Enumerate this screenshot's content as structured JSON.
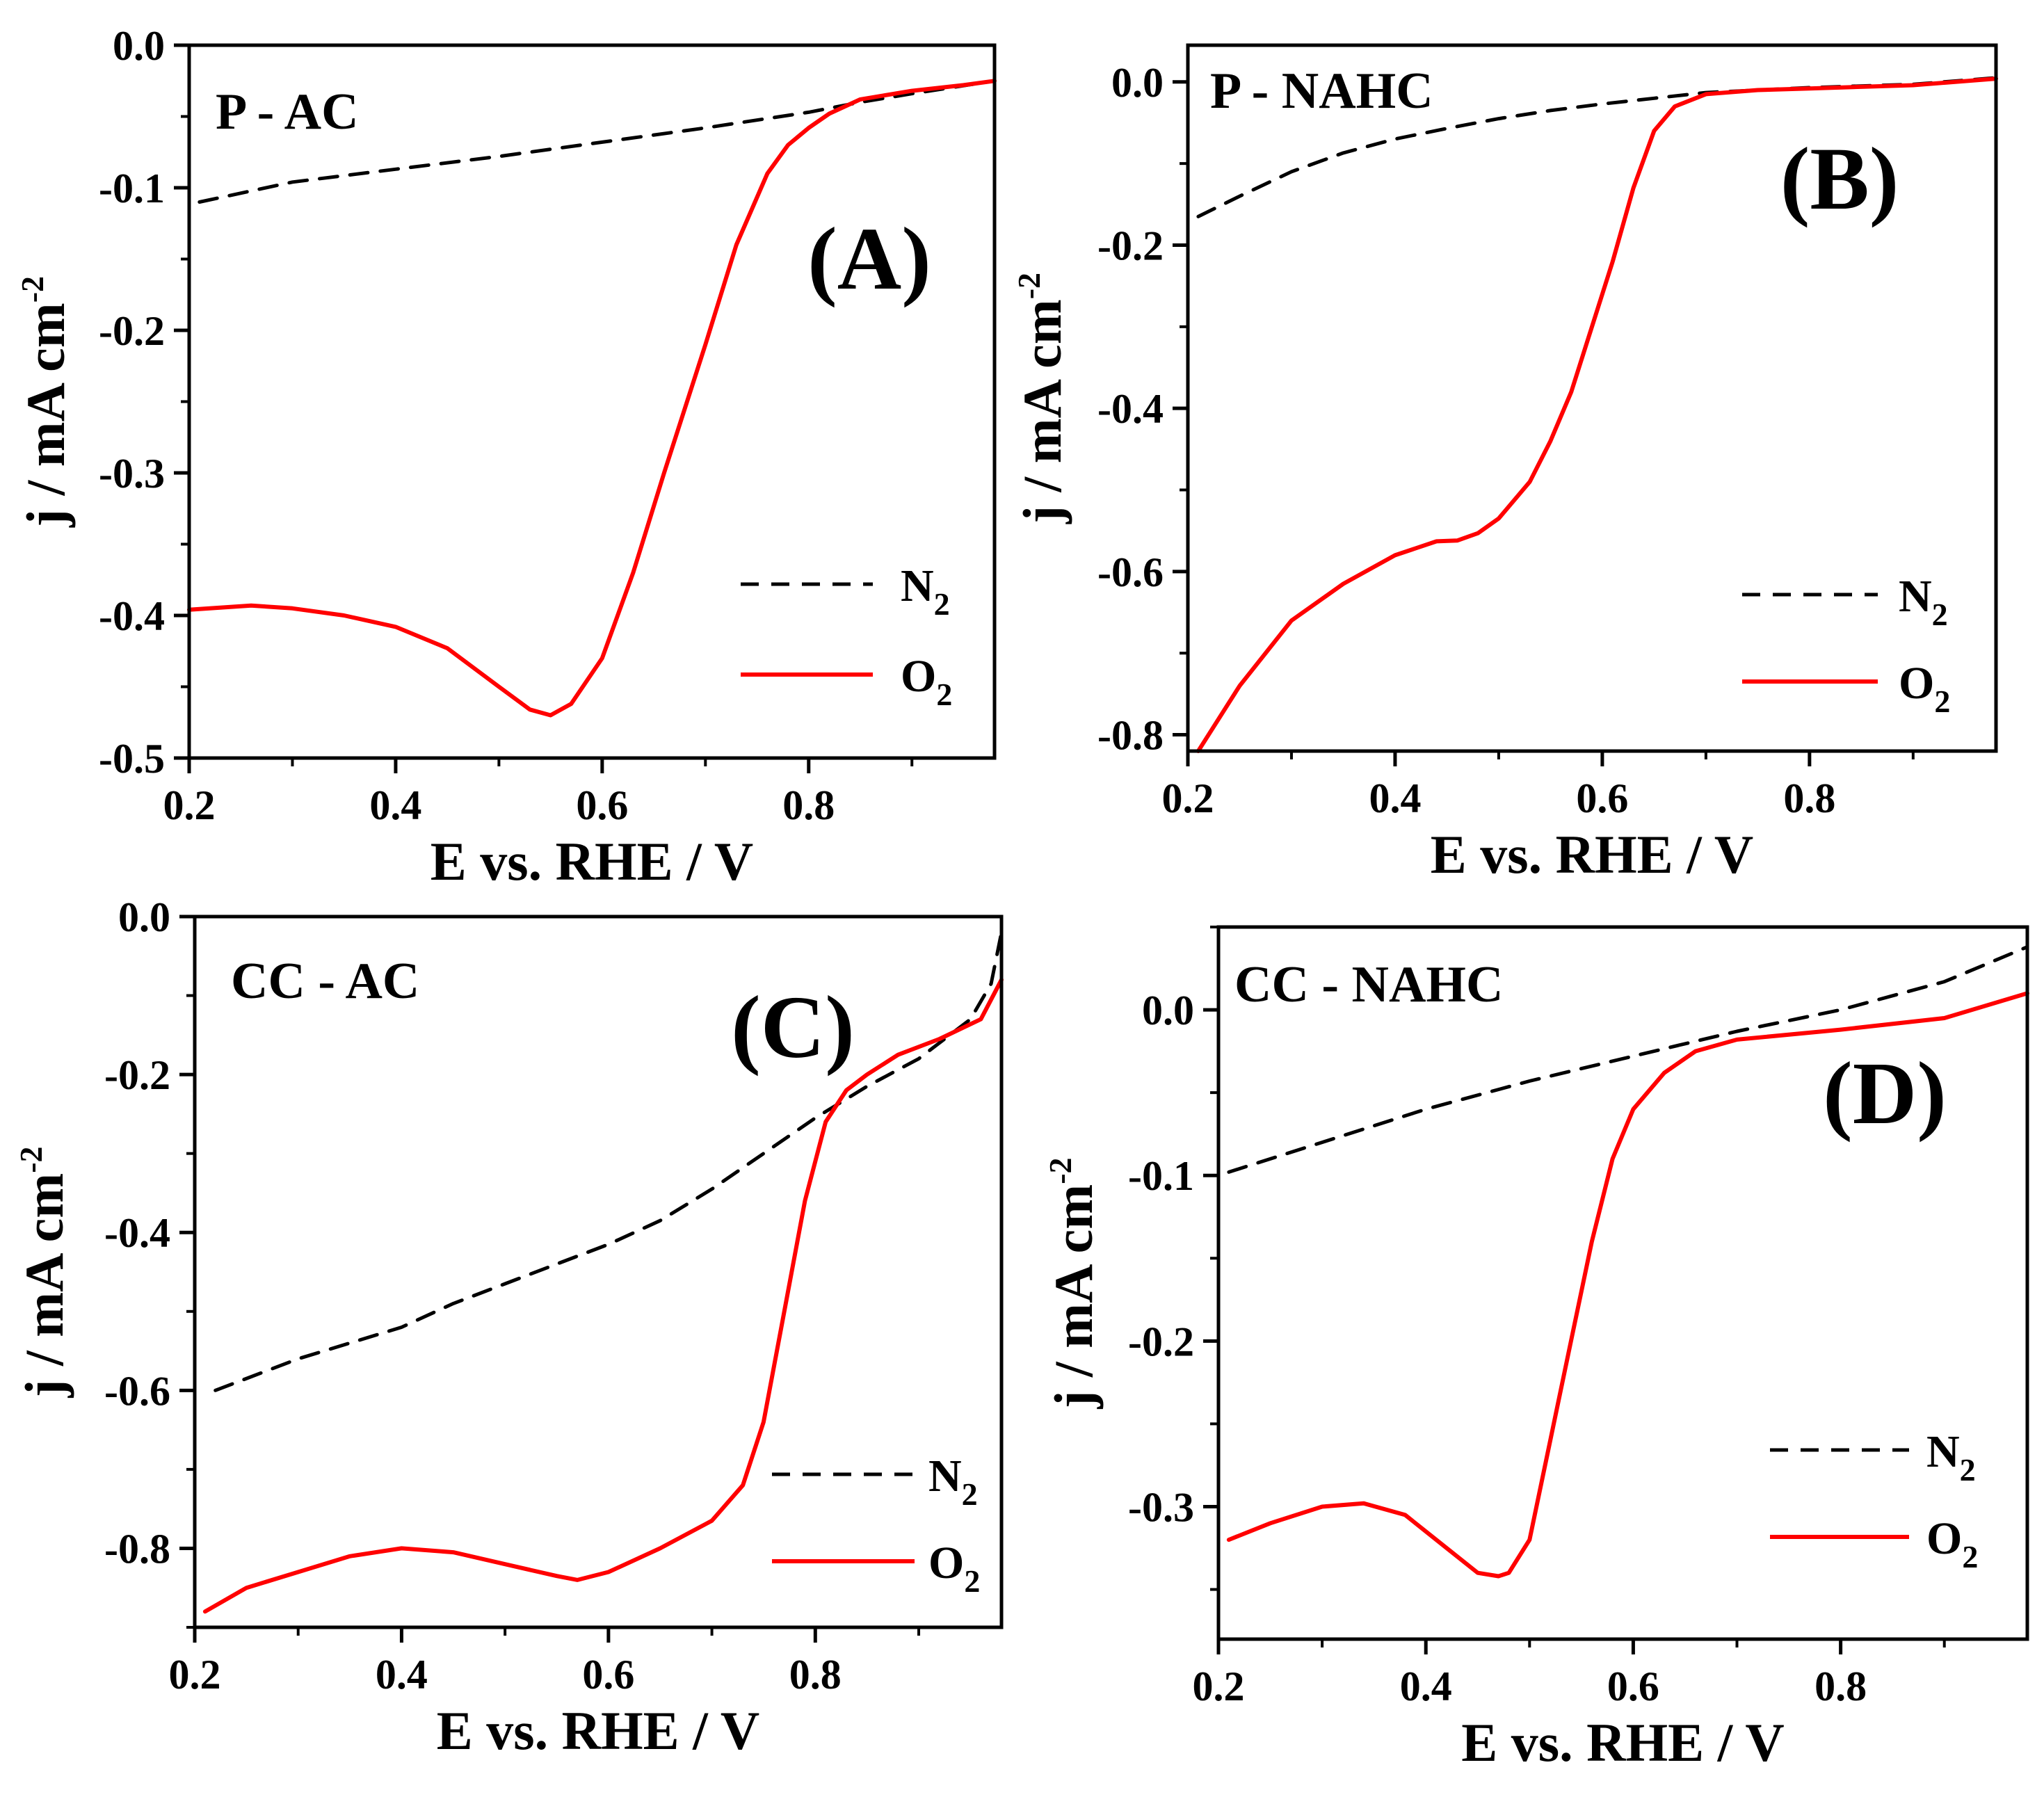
{
  "figure": {
    "ylabel_sup": "-2"
  },
  "chart_data": [
    {
      "type": "line",
      "panel_label": "P - AC",
      "letter": "(A)",
      "xlabel": "E vs. RHE / V",
      "ylabel": "j / mA cm",
      "xlim": [
        0.2,
        0.98
      ],
      "ylim": [
        -0.5,
        0.0
      ],
      "xticks": [
        0.2,
        0.4,
        0.6,
        0.8
      ],
      "yticks": [
        0.0,
        -0.1,
        -0.2,
        -0.3,
        -0.4,
        -0.5
      ],
      "ytick_decimals": 1,
      "legend_position": "bottom-right",
      "series": [
        {
          "name": "N",
          "sub": "2",
          "color": "#000000",
          "dash": true,
          "x": [
            0.21,
            0.3,
            0.4,
            0.5,
            0.6,
            0.7,
            0.8,
            0.85,
            0.9,
            0.98
          ],
          "y": [
            -0.11,
            -0.096,
            -0.087,
            -0.078,
            -0.068,
            -0.058,
            -0.047,
            -0.04,
            -0.034,
            -0.025
          ]
        },
        {
          "name": "O",
          "sub": "2",
          "color": "#ff0000",
          "dash": false,
          "x": [
            0.2,
            0.26,
            0.3,
            0.35,
            0.4,
            0.45,
            0.5,
            0.53,
            0.55,
            0.57,
            0.6,
            0.63,
            0.66,
            0.7,
            0.73,
            0.76,
            0.78,
            0.8,
            0.82,
            0.85,
            0.9,
            0.95,
            0.98
          ],
          "y": [
            -0.396,
            -0.393,
            -0.395,
            -0.4,
            -0.408,
            -0.423,
            -0.45,
            -0.466,
            -0.47,
            -0.462,
            -0.43,
            -0.37,
            -0.3,
            -0.21,
            -0.14,
            -0.09,
            -0.07,
            -0.058,
            -0.048,
            -0.038,
            -0.032,
            -0.028,
            -0.025
          ]
        }
      ]
    },
    {
      "type": "line",
      "panel_label": "P - NAHC",
      "letter": "(B)",
      "xlabel": "E vs. RHE / V",
      "ylabel": "j / mA cm",
      "xlim": [
        0.2,
        0.98
      ],
      "ylim": [
        -0.82,
        0.045
      ],
      "xticks": [
        0.2,
        0.4,
        0.6,
        0.8
      ],
      "yticks": [
        0.0,
        -0.2,
        -0.4,
        -0.6,
        -0.8
      ],
      "ytick_decimals": 1,
      "legend_position": "bottom-right",
      "series": [
        {
          "name": "N",
          "sub": "2",
          "color": "#000000",
          "dash": true,
          "x": [
            0.21,
            0.25,
            0.3,
            0.35,
            0.4,
            0.45,
            0.5,
            0.55,
            0.6,
            0.65,
            0.7,
            0.8,
            0.9,
            0.98
          ],
          "y": [
            -0.165,
            -0.14,
            -0.11,
            -0.087,
            -0.07,
            -0.057,
            -0.045,
            -0.035,
            -0.027,
            -0.02,
            -0.013,
            -0.007,
            -0.003,
            0.005
          ]
        },
        {
          "name": "O",
          "sub": "2",
          "color": "#ff0000",
          "dash": false,
          "x": [
            0.21,
            0.25,
            0.3,
            0.35,
            0.4,
            0.44,
            0.46,
            0.48,
            0.5,
            0.53,
            0.55,
            0.57,
            0.59,
            0.61,
            0.63,
            0.65,
            0.67,
            0.7,
            0.75,
            0.8,
            0.9,
            0.98
          ],
          "y": [
            -0.82,
            -0.74,
            -0.66,
            -0.615,
            -0.58,
            -0.563,
            -0.562,
            -0.553,
            -0.535,
            -0.49,
            -0.44,
            -0.38,
            -0.3,
            -0.22,
            -0.13,
            -0.06,
            -0.03,
            -0.015,
            -0.01,
            -0.008,
            -0.004,
            0.004
          ]
        }
      ]
    },
    {
      "type": "line",
      "panel_label": "CC - AC",
      "letter": "(C)",
      "xlabel": "E vs. RHE / V",
      "ylabel": "j / mA cm",
      "xlim": [
        0.2,
        0.98
      ],
      "ylim": [
        -0.9,
        0.0
      ],
      "xticks": [
        0.2,
        0.4,
        0.6,
        0.8
      ],
      "yticks": [
        0.0,
        -0.2,
        -0.4,
        -0.6,
        -0.8
      ],
      "ytick_decimals": 1,
      "legend_position": "bottom-right",
      "series": [
        {
          "name": "N",
          "sub": "2",
          "color": "#000000",
          "dash": true,
          "x": [
            0.22,
            0.3,
            0.35,
            0.4,
            0.45,
            0.5,
            0.55,
            0.6,
            0.65,
            0.7,
            0.75,
            0.8,
            0.85,
            0.9,
            0.95,
            0.97,
            0.98
          ],
          "y": [
            -0.6,
            -0.56,
            -0.54,
            -0.52,
            -0.49,
            -0.465,
            -0.44,
            -0.415,
            -0.385,
            -0.345,
            -0.3,
            -0.255,
            -0.215,
            -0.18,
            -0.13,
            -0.085,
            -0.02
          ]
        },
        {
          "name": "O",
          "sub": "2",
          "color": "#ff0000",
          "dash": false,
          "x": [
            0.21,
            0.25,
            0.3,
            0.35,
            0.4,
            0.45,
            0.5,
            0.55,
            0.57,
            0.6,
            0.65,
            0.7,
            0.73,
            0.75,
            0.77,
            0.79,
            0.81,
            0.83,
            0.85,
            0.88,
            0.92,
            0.96,
            0.98
          ],
          "y": [
            -0.88,
            -0.85,
            -0.83,
            -0.81,
            -0.8,
            -0.805,
            -0.82,
            -0.835,
            -0.84,
            -0.83,
            -0.8,
            -0.765,
            -0.72,
            -0.64,
            -0.5,
            -0.36,
            -0.26,
            -0.22,
            -0.2,
            -0.175,
            -0.155,
            -0.13,
            -0.08
          ]
        }
      ]
    },
    {
      "type": "line",
      "panel_label": "CC - NAHC",
      "letter": "(D)",
      "xlabel": "E vs. RHE / V",
      "ylabel": "j / mA cm",
      "xlim": [
        0.2,
        0.98
      ],
      "ylim": [
        -0.38,
        0.05
      ],
      "xticks": [
        0.2,
        0.4,
        0.6,
        0.8
      ],
      "yticks": [
        0.0,
        -0.1,
        -0.2,
        -0.3
      ],
      "ytick_decimals": 1,
      "legend_position": "bottom-right",
      "series": [
        {
          "name": "N",
          "sub": "2",
          "color": "#000000",
          "dash": true,
          "x": [
            0.21,
            0.3,
            0.4,
            0.5,
            0.6,
            0.7,
            0.8,
            0.9,
            0.98
          ],
          "y": [
            -0.098,
            -0.08,
            -0.06,
            -0.043,
            -0.028,
            -0.013,
            0.0,
            0.017,
            0.038
          ]
        },
        {
          "name": "O",
          "sub": "2",
          "color": "#ff0000",
          "dash": false,
          "x": [
            0.21,
            0.25,
            0.3,
            0.34,
            0.38,
            0.42,
            0.45,
            0.47,
            0.48,
            0.5,
            0.52,
            0.54,
            0.56,
            0.58,
            0.6,
            0.63,
            0.66,
            0.7,
            0.8,
            0.9,
            0.98
          ],
          "y": [
            -0.32,
            -0.31,
            -0.3,
            -0.298,
            -0.305,
            -0.325,
            -0.34,
            -0.342,
            -0.34,
            -0.32,
            -0.26,
            -0.2,
            -0.14,
            -0.09,
            -0.06,
            -0.038,
            -0.025,
            -0.018,
            -0.012,
            -0.005,
            0.01
          ]
        }
      ]
    }
  ]
}
